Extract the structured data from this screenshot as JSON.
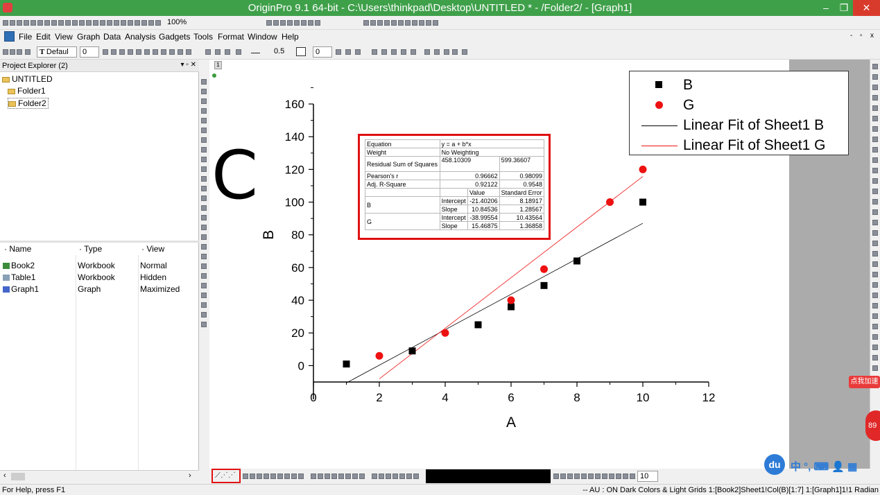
{
  "window": {
    "title": "OriginPro 9.1 64-bit - C:\\Users\\thinkpad\\Desktop\\UNTITLED * - /Folder2/ - [Graph1]",
    "minimize": "–",
    "restore": "❐",
    "close": "✕"
  },
  "menus": [
    "File",
    "Edit",
    "View",
    "Graph",
    "Data",
    "Analysis",
    "Gadgets",
    "Tools",
    "Format",
    "Window",
    "Help"
  ],
  "toolbar": {
    "zoom": "100%",
    "font_name": "Defaul",
    "font_size": "0",
    "line_width": "0.5",
    "fill_value": "0",
    "bottom_value": "10"
  },
  "project_explorer": {
    "title": "Project Explorer (2)",
    "controls": "▾ ▫ ✕",
    "root": "UNTITLED",
    "folders": [
      "Folder1",
      "Folder2"
    ],
    "columns": [
      "Name",
      "Type",
      "View"
    ],
    "items": [
      {
        "name": "Book2",
        "type": "Workbook",
        "view": "Normal",
        "icon_color": "#3c8c3c"
      },
      {
        "name": "Table1",
        "type": "Workbook",
        "view": "Hidden",
        "icon_color": "#8aa0b8"
      },
      {
        "name": "Graph1",
        "type": "Graph",
        "view": "Maximized",
        "icon_color": "#4466cc"
      }
    ]
  },
  "graph": {
    "page_tab": "1",
    "annotation": "C"
  },
  "chart_data": {
    "type": "scatter",
    "xlabel": "A",
    "ylabel": "B",
    "xlim": [
      0,
      12
    ],
    "ylim": [
      -10,
      160
    ],
    "xticks": [
      0,
      2,
      4,
      6,
      8,
      10,
      12
    ],
    "yticks": [
      0,
      20,
      40,
      60,
      80,
      100,
      120,
      140,
      160
    ],
    "series": [
      {
        "name": "B",
        "marker": "square",
        "color": "#000000",
        "x": [
          1,
          3,
          5,
          6,
          7,
          8,
          10
        ],
        "y": [
          1,
          9,
          25,
          36,
          49,
          64,
          100
        ]
      },
      {
        "name": "G",
        "marker": "circle",
        "color": "#ee1111",
        "x": [
          2,
          4,
          6,
          7,
          9,
          10
        ],
        "y": [
          6,
          20,
          40,
          59,
          100,
          120
        ]
      }
    ],
    "fits": [
      {
        "name": "Linear Fit of Sheet1 B",
        "color": "#000000",
        "intercept": -21.40206,
        "slope": 10.84536,
        "x_range": [
          1,
          10
        ]
      },
      {
        "name": "Linear Fit of Sheet1 G",
        "color": "#ee1111",
        "intercept": -38.99554,
        "slope": 15.46875,
        "x_range": [
          2,
          10
        ]
      }
    ],
    "legend_position": "top-right"
  },
  "fit_table": {
    "equation_label": "Equation",
    "equation": "y = a + b*x",
    "weight_label": "Weight",
    "weight": "No Weighting",
    "rss_label": "Residual Sum of Squares",
    "rss_b": "458.10309",
    "rss_g": "599.36607",
    "pearson_label": "Pearson's r",
    "pearson_b": "0.96662",
    "pearson_g": "0.98099",
    "adjr_label": "Adj. R-Square",
    "adjr_b": "0.92122",
    "adjr_g": "0.9548",
    "value_label": "Value",
    "se_label": "Standard Error",
    "b_label": "B",
    "g_label": "G",
    "intercept_label": "Intercept",
    "slope_label": "Slope",
    "b_intercept": "-21.40206",
    "b_intercept_se": "8.18917",
    "b_slope": "10.84536",
    "b_slope_se": "1.28567",
    "g_intercept": "-38.99554",
    "g_intercept_se": "10.43564",
    "g_slope": "15.46875",
    "g_slope_se": "1.36858"
  },
  "status": {
    "help": "For Help, press F1",
    "info": "-- AU : ON Dark Colors & Light Grids 1:[Book2]Sheet1!Col(B)[1:7] 1:[Graph1]1!1 Radian"
  },
  "tray": {
    "baidu": "du",
    "ime": "中 °, ⌨ 👤 ▦",
    "accelerate": "点我加速",
    "speed": "89"
  }
}
